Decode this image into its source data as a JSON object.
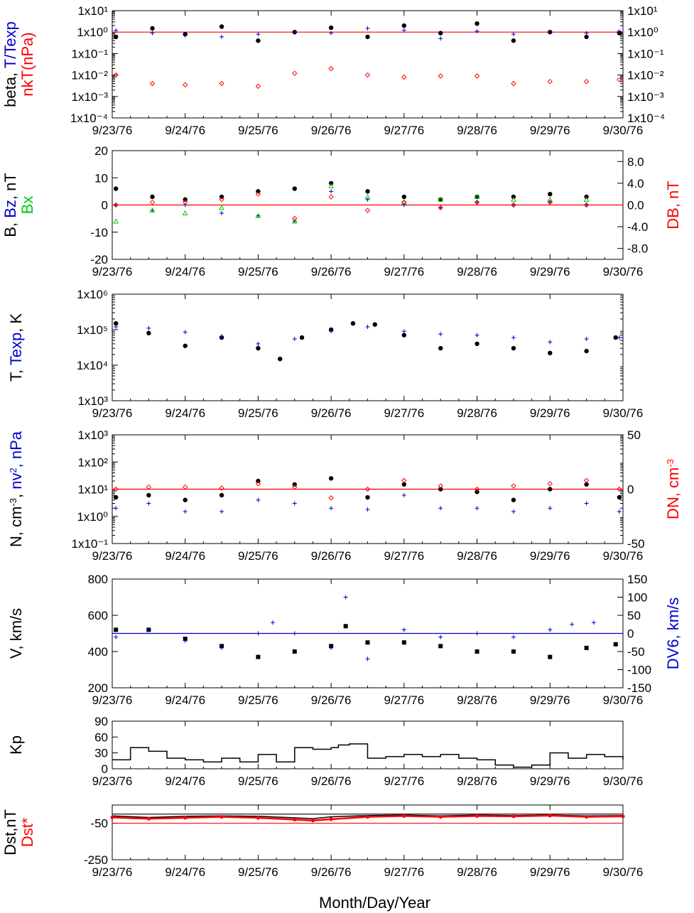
{
  "x_axis": {
    "tick_labels": [
      "9/23/76",
      "9/24/76",
      "9/25/76",
      "9/26/76",
      "9/27/76",
      "9/28/76",
      "9/29/76",
      "9/30/76"
    ],
    "title": "Month/Day/Year"
  },
  "colors": {
    "black": "#000000",
    "blue": "#0000cc",
    "red": "#ff0000",
    "green": "#00cc00"
  },
  "chart_data": [
    {
      "type": "scatter",
      "panel": "beta",
      "ylabel_left": [
        {
          "text": "beta, ",
          "color": "#000000"
        },
        {
          "text": "T/Texp",
          "color": "#0000cc"
        }
      ],
      "ylabel_left2": [
        {
          "text": "nkT(nPa)",
          "color": "#ff0000"
        }
      ],
      "ylog": true,
      "ylim": [
        0.0001,
        10
      ],
      "tick_labels_left": [
        "1x10¹",
        "1x10⁰",
        "1x10⁻¹",
        "1x10⁻²",
        "1x10⁻³",
        "1x10⁻⁴"
      ],
      "tick_labels_right": [
        "1x10¹",
        "1x10⁰",
        "1x10⁻¹",
        "1x10⁻²",
        "1x10⁻³",
        "1x10⁻⁴"
      ],
      "reference_line": {
        "y": 1,
        "color": "#ff0000"
      },
      "series": [
        {
          "marker": "dot",
          "color": "#000000",
          "x": [
            0.05,
            0.55,
            1.0,
            1.5,
            2.0,
            2.5,
            3.0,
            3.5,
            4.0,
            4.5,
            5.0,
            5.5,
            6.0,
            6.5,
            6.95
          ],
          "y": [
            0.6,
            1.5,
            0.8,
            1.8,
            0.4,
            1.0,
            1.6,
            0.6,
            2.0,
            0.9,
            2.5,
            0.4,
            1.0,
            0.6,
            0.9
          ]
        },
        {
          "marker": "plus",
          "color": "#0000cc",
          "x": [
            0.05,
            0.55,
            1.0,
            1.5,
            2.0,
            2.5,
            3.0,
            3.5,
            4.0,
            4.5,
            5.0,
            5.5,
            6.0,
            6.5,
            6.95
          ],
          "y": [
            1.2,
            0.9,
            0.7,
            0.6,
            0.8,
            1.0,
            0.9,
            1.5,
            1.2,
            0.5,
            1.1,
            0.8,
            1.0,
            0.9,
            1.1
          ]
        },
        {
          "marker": "diamond",
          "color": "#ff0000",
          "x": [
            0.05,
            0.55,
            1.0,
            1.5,
            2.0,
            2.5,
            3.0,
            3.5,
            4.0,
            4.5,
            5.0,
            5.5,
            6.0,
            6.5,
            6.95
          ],
          "y": [
            0.01,
            0.004,
            0.0035,
            0.004,
            0.003,
            0.012,
            0.02,
            0.01,
            0.008,
            0.009,
            0.009,
            0.004,
            0.005,
            0.005,
            0.006
          ]
        }
      ]
    },
    {
      "type": "scatter",
      "panel": "magnetic field",
      "ylabel_left": [
        {
          "text": "B, ",
          "color": "#000000"
        },
        {
          "text": "Bz",
          "color": "#0000cc"
        },
        {
          "text": ", nT",
          "color": "#000000"
        }
      ],
      "ylabel_left2": [
        {
          "text": "Bx",
          "color": "#00cc00"
        }
      ],
      "ylabel_right": [
        {
          "text": "DB, nT",
          "color": "#ff0000"
        }
      ],
      "ylim": [
        -20,
        20
      ],
      "ylim_right": [
        -10,
        10
      ],
      "tick_labels_left": [
        "20",
        "10",
        "0",
        "-10",
        "-20"
      ],
      "tick_labels_right": [
        "8.0",
        "4.0",
        "0.0",
        "-4.0",
        "-8.0"
      ],
      "reference_line": {
        "y": 0,
        "color": "#ff0000"
      },
      "series": [
        {
          "marker": "dot",
          "color": "#000000",
          "x": [
            0.05,
            0.55,
            1.0,
            1.5,
            2.0,
            2.5,
            3.0,
            3.5,
            4.0,
            4.5,
            5.0,
            5.5,
            6.0,
            6.5
          ],
          "y": [
            6,
            3,
            2,
            3,
            5,
            6,
            8,
            5,
            3,
            2,
            3,
            3,
            4,
            3
          ]
        },
        {
          "marker": "plus",
          "color": "#0000cc",
          "x": [
            0.05,
            0.55,
            1.0,
            1.5,
            2.0,
            2.5,
            3.0,
            3.5,
            4.0,
            4.5,
            5.0,
            5.5,
            6.0,
            6.5
          ],
          "y": [
            0,
            -2,
            0,
            -3,
            -4,
            -6,
            5,
            2,
            0,
            -1,
            1,
            0,
            1,
            0
          ]
        },
        {
          "marker": "triangle",
          "color": "#00cc00",
          "x": [
            0.05,
            0.55,
            1.0,
            1.5,
            2.0,
            2.5,
            3.0,
            3.5,
            4.0,
            4.5,
            5.0,
            5.5,
            6.0,
            6.5
          ],
          "y": [
            -6,
            -2,
            -3,
            -1,
            -4,
            -6,
            7,
            3,
            1,
            2,
            3,
            2,
            2,
            2
          ]
        },
        {
          "marker": "diamond",
          "color": "#ff0000",
          "axis": "right",
          "x": [
            0.05,
            0.55,
            1.0,
            1.5,
            2.0,
            2.5,
            3.0,
            3.5,
            4.0,
            4.5,
            5.0,
            5.5,
            6.0,
            6.5
          ],
          "y": [
            0,
            0.5,
            0.5,
            1.0,
            2.0,
            -2.5,
            1.5,
            -1.0,
            0.5,
            -0.5,
            0.5,
            0.0,
            0.5,
            0.0
          ]
        }
      ]
    },
    {
      "type": "scatter",
      "panel": "temperature",
      "ylabel_left": [
        {
          "text": "T, ",
          "color": "#000000"
        },
        {
          "text": "Texp",
          "color": "#0000cc"
        },
        {
          "text": ", K",
          "color": "#000000"
        }
      ],
      "ylog": true,
      "ylim": [
        1000,
        1000000
      ],
      "tick_labels_left": [
        "1x10⁶",
        "1x10⁵",
        "1x10⁴",
        "1x10³"
      ],
      "series": [
        {
          "marker": "dot",
          "color": "#000000",
          "x": [
            0.05,
            0.5,
            1.0,
            1.5,
            2.0,
            2.3,
            2.6,
            3.0,
            3.3,
            3.6,
            4.0,
            4.5,
            5.0,
            5.5,
            6.0,
            6.5,
            6.9
          ],
          "y": [
            150000,
            80000,
            35000,
            60000,
            30000,
            15000,
            60000,
            100000,
            150000,
            140000,
            70000,
            30000,
            40000,
            30000,
            22000,
            25000,
            60000
          ]
        },
        {
          "marker": "plus",
          "color": "#0000cc",
          "x": [
            0.05,
            0.5,
            1.0,
            1.5,
            2.0,
            2.5,
            3.0,
            3.5,
            4.0,
            4.5,
            5.0,
            5.5,
            6.0,
            6.5,
            6.95
          ],
          "y": [
            120000,
            110000,
            85000,
            65000,
            40000,
            55000,
            90000,
            120000,
            90000,
            75000,
            70000,
            60000,
            45000,
            55000,
            60000
          ]
        }
      ]
    },
    {
      "type": "scatter",
      "panel": "density",
      "ylabel_left": [
        {
          "text": "N, cm",
          "color": "#000000"
        },
        {
          "text": "-3",
          "color": "#000000",
          "sup": true
        },
        {
          "text": ", ",
          "color": "#000000"
        },
        {
          "text": "nv",
          "color": "#0000cc"
        },
        {
          "text": "2",
          "color": "#0000cc",
          "sup": true
        },
        {
          "text": ", nPa",
          "color": "#0000cc"
        }
      ],
      "ylabel_right": [
        {
          "text": "DN, cm",
          "color": "#ff0000"
        },
        {
          "text": "-3",
          "color": "#ff0000",
          "sup": true
        }
      ],
      "ylog": true,
      "ylim": [
        0.1,
        1000
      ],
      "ylim_right": [
        -50,
        50
      ],
      "tick_labels_left": [
        "1x10³",
        "1x10²",
        "1x10¹",
        "1x10⁰",
        "1x10⁻¹"
      ],
      "tick_labels_right": [
        "50",
        "0",
        "-50"
      ],
      "reference_line": {
        "y": 10,
        "color": "#ff0000"
      },
      "series": [
        {
          "marker": "dot",
          "color": "#000000",
          "x": [
            0.05,
            0.5,
            1.0,
            1.5,
            2.0,
            2.5,
            3.0,
            3.5,
            4.0,
            4.5,
            5.0,
            5.5,
            6.0,
            6.5,
            6.95
          ],
          "y": [
            5,
            6,
            4,
            6,
            20,
            15,
            25,
            5,
            15,
            10,
            8,
            4,
            10,
            15,
            5
          ]
        },
        {
          "marker": "plus",
          "color": "#0000cc",
          "x": [
            0.05,
            0.5,
            1.0,
            1.5,
            2.0,
            2.5,
            3.0,
            3.5,
            4.0,
            4.5,
            5.0,
            5.5,
            6.0,
            6.5,
            6.95
          ],
          "y": [
            2,
            3,
            1.5,
            1.5,
            4,
            3,
            2,
            1.8,
            6,
            2,
            2,
            1.5,
            2,
            3,
            1.5
          ]
        },
        {
          "marker": "diamond",
          "color": "#ff0000",
          "axis": "right",
          "x": [
            0.05,
            0.5,
            1.0,
            1.5,
            2.0,
            2.5,
            3.0,
            3.5,
            4.0,
            4.5,
            5.0,
            5.5,
            6.0,
            6.5,
            6.95
          ],
          "y": [
            0,
            2,
            2,
            1,
            5,
            2,
            -8,
            0,
            8,
            3,
            0,
            3,
            5,
            8,
            0
          ]
        }
      ]
    },
    {
      "type": "scatter",
      "panel": "velocity",
      "ylabel_left": [
        {
          "text": "V, km/s",
          "color": "#000000"
        }
      ],
      "ylabel_right": [
        {
          "text": "DV6, km/s",
          "color": "#0000cc"
        }
      ],
      "ylim": [
        200,
        800
      ],
      "ylim_right": [
        -150,
        150
      ],
      "tick_labels_left": [
        "800",
        "600",
        "400",
        "200"
      ],
      "tick_labels_right": [
        "150",
        "100",
        "50",
        "0",
        "-50",
        "-100",
        "-150"
      ],
      "reference_line": {
        "y": 500,
        "color": "#0000cc"
      },
      "series": [
        {
          "marker": "square",
          "color": "#000000",
          "x": [
            0.05,
            0.5,
            1.0,
            1.5,
            2.0,
            2.5,
            3.0,
            3.2,
            3.5,
            4.0,
            4.5,
            5.0,
            5.5,
            6.0,
            6.5,
            6.9
          ],
          "y": [
            520,
            520,
            470,
            430,
            370,
            400,
            430,
            540,
            450,
            450,
            430,
            400,
            400,
            370,
            420,
            440
          ]
        },
        {
          "marker": "plus",
          "color": "#0000cc",
          "axis": "right",
          "x": [
            0.05,
            0.5,
            1.0,
            1.5,
            2.0,
            2.2,
            2.5,
            3.0,
            3.2,
            3.5,
            4.0,
            4.5,
            5.0,
            5.5,
            6.0,
            6.3,
            6.6
          ],
          "y": [
            -10,
            10,
            -20,
            -40,
            0,
            30,
            0,
            -40,
            100,
            -70,
            10,
            -10,
            0,
            -10,
            10,
            25,
            30
          ]
        }
      ]
    },
    {
      "type": "line",
      "panel": "Kp",
      "ylabel_left": [
        {
          "text": "Kp",
          "color": "#000000"
        }
      ],
      "ylim": [
        0,
        90
      ],
      "tick_labels_left": [
        "90",
        "60",
        "30",
        "0"
      ],
      "series": [
        {
          "color": "#000000",
          "step": true,
          "x": [
            0,
            0.25,
            0.5,
            0.75,
            1.0,
            1.25,
            1.5,
            1.75,
            2.0,
            2.25,
            2.5,
            2.75,
            3.0,
            3.1,
            3.25,
            3.5,
            3.75,
            4.0,
            4.25,
            4.5,
            4.75,
            5.0,
            5.25,
            5.5,
            5.75,
            6.0,
            6.25,
            6.5,
            6.75,
            7.0
          ],
          "y": [
            17,
            40,
            33,
            20,
            17,
            13,
            20,
            13,
            27,
            13,
            40,
            37,
            40,
            45,
            47,
            20,
            23,
            27,
            23,
            27,
            20,
            17,
            7,
            3,
            7,
            30,
            20,
            27,
            23,
            17
          ]
        }
      ]
    },
    {
      "type": "line",
      "panel": "Dst",
      "ylabel_left": [
        {
          "text": "Dst,nT",
          "color": "#000000"
        }
      ],
      "ylabel_left2": [
        {
          "text": "Dst*",
          "color": "#ff0000"
        }
      ],
      "ylim": [
        -250,
        50
      ],
      "tick_labels_left": [
        "-50",
        "-250"
      ],
      "reference_lines": [
        {
          "y": 0,
          "color": "#000000"
        },
        {
          "y": -50,
          "color": "#ff0000"
        }
      ],
      "series": [
        {
          "color": "#000000",
          "x": [
            0,
            0.5,
            1.0,
            1.5,
            2.0,
            2.5,
            2.75,
            3.0,
            3.5,
            4.0,
            4.5,
            5.0,
            5.5,
            6.0,
            6.5,
            7.0
          ],
          "y": [
            -10,
            -18,
            -12,
            -10,
            -12,
            -20,
            -25,
            -15,
            -8,
            -5,
            -10,
            -5,
            -8,
            -5,
            -10,
            -8
          ]
        },
        {
          "color": "#ff0000",
          "marker": "dot-line",
          "x": [
            0,
            0.5,
            1.0,
            1.5,
            2.0,
            2.5,
            2.75,
            3.0,
            3.5,
            4.0,
            4.5,
            5.0,
            5.5,
            6.0,
            6.5,
            7.0
          ],
          "y": [
            -18,
            -25,
            -20,
            -15,
            -20,
            -30,
            -35,
            -28,
            -15,
            -10,
            -15,
            -10,
            -12,
            -8,
            -15,
            -12
          ]
        }
      ]
    }
  ]
}
